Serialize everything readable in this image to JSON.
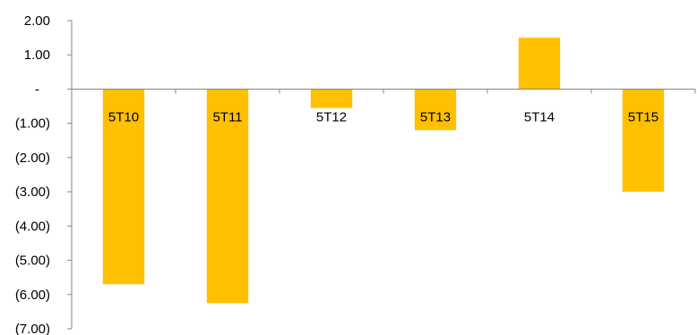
{
  "chart_data": {
    "type": "bar",
    "categories": [
      "5T10",
      "5T11",
      "5T12",
      "5T13",
      "5T14",
      "5T15"
    ],
    "values": [
      -5.7,
      -6.25,
      -0.55,
      -1.2,
      1.5,
      -3.0
    ],
    "ylim": [
      -7,
      2
    ],
    "yticks": [
      2,
      1,
      0,
      -1,
      -2,
      -3,
      -4,
      -5,
      -6,
      -7
    ],
    "ytick_labels": [
      "2.00",
      "1.00",
      "-",
      "(1.00)",
      "(2.00)",
      "(3.00)",
      "(4.00)",
      "(5.00)",
      "(6.00)",
      "(7.00)"
    ],
    "grid": false,
    "legend": "none",
    "bar_color": "#FFC000",
    "axis_color": "#868686"
  }
}
